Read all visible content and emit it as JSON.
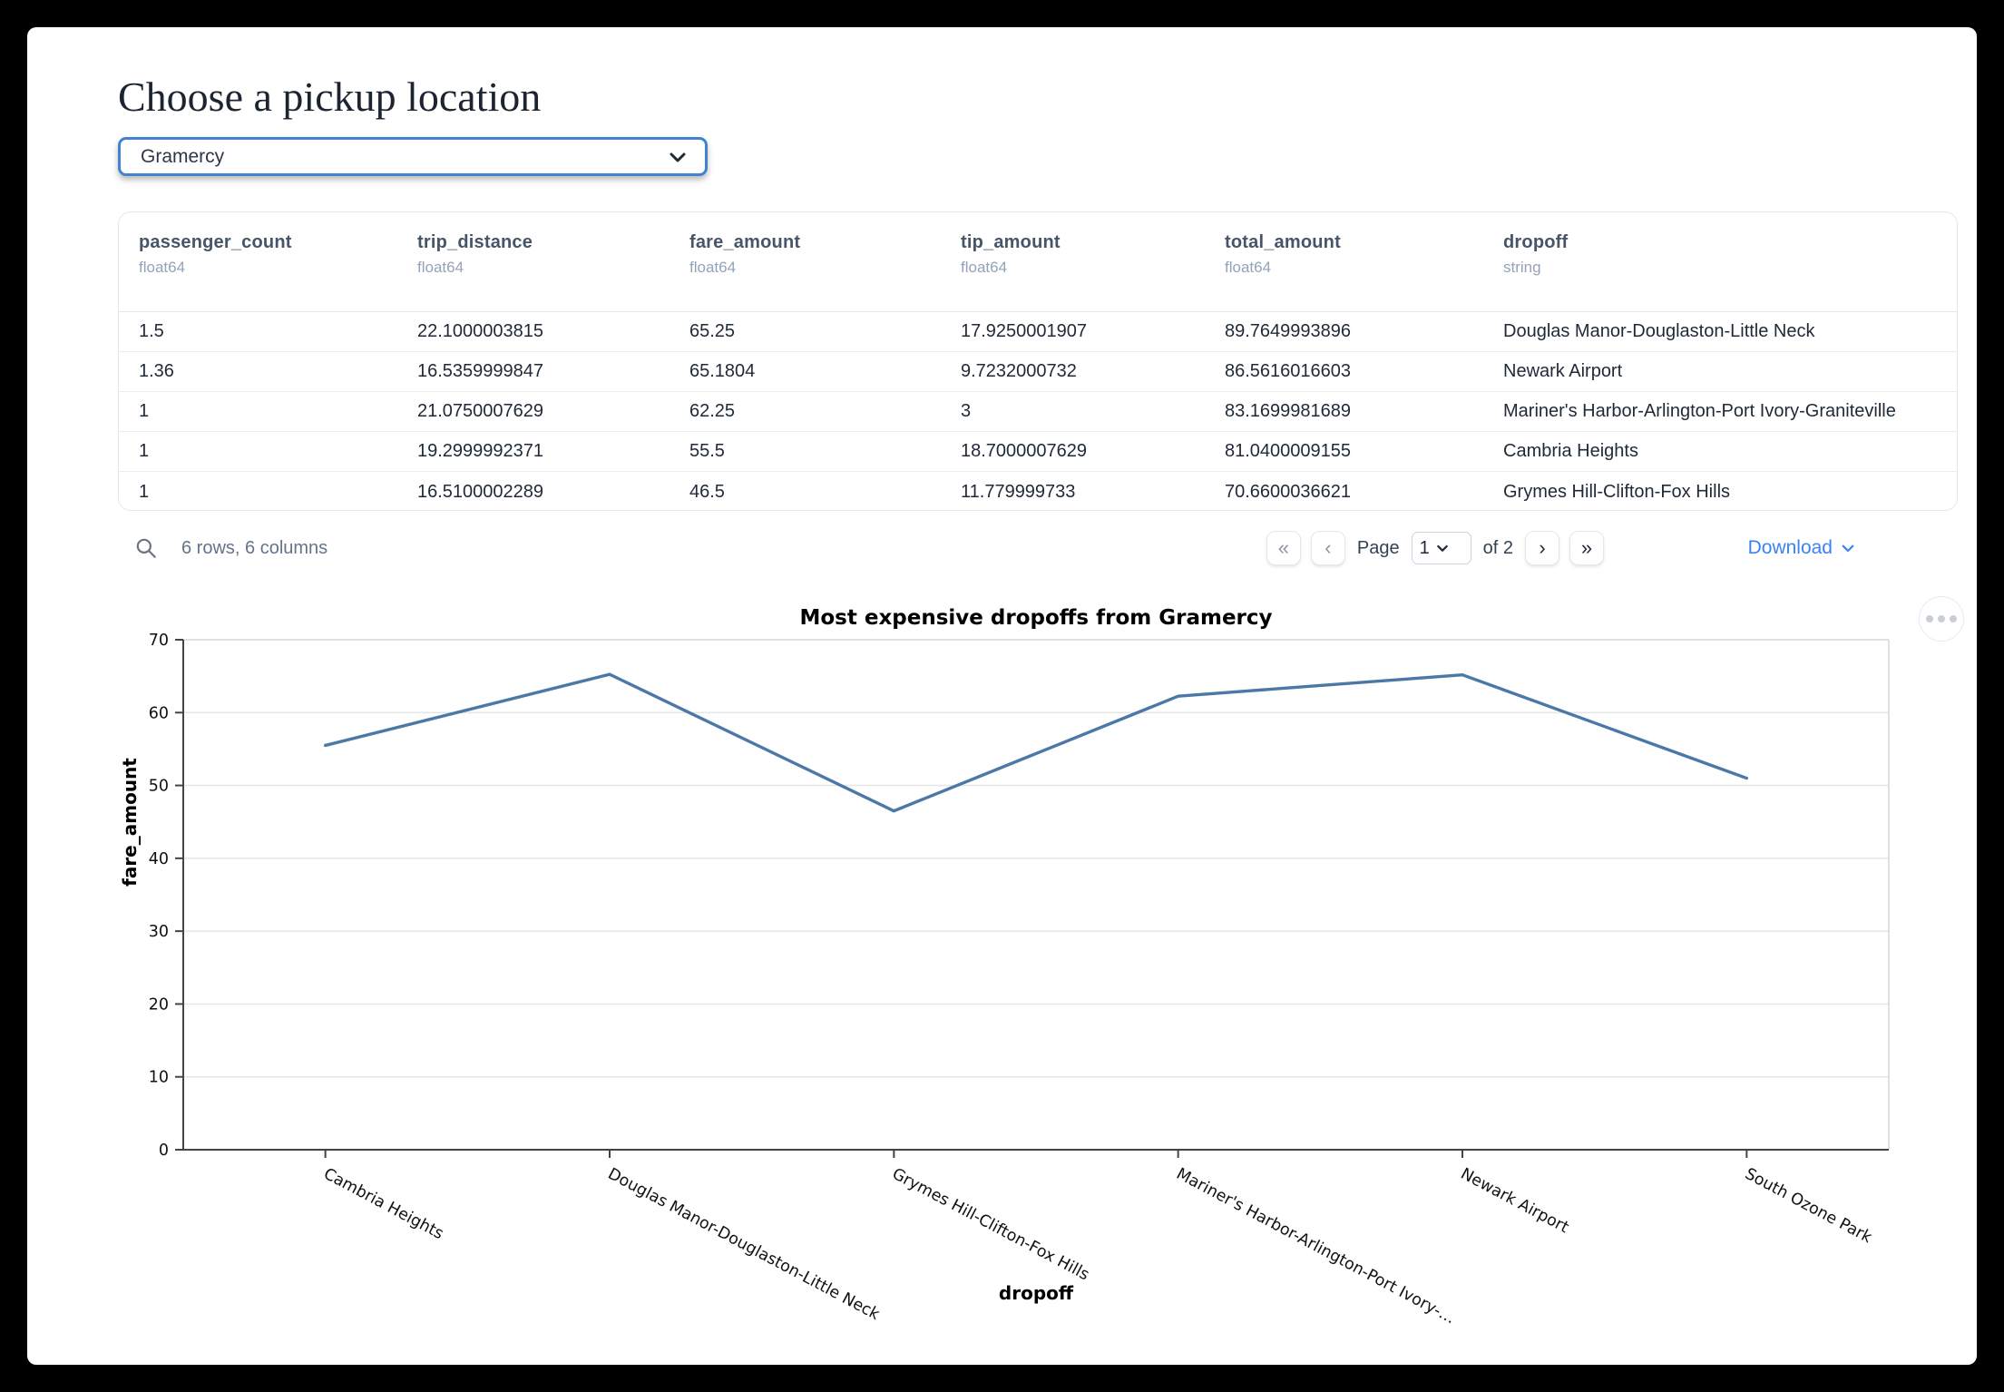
{
  "page": {
    "background": "#000000",
    "card_background": "#ffffff"
  },
  "header": {
    "title": "Choose a pickup location"
  },
  "pickup_select": {
    "value": "Gramercy"
  },
  "table": {
    "columns": [
      {
        "name": "passenger_count",
        "dtype": "float64"
      },
      {
        "name": "trip_distance",
        "dtype": "float64"
      },
      {
        "name": "fare_amount",
        "dtype": "float64"
      },
      {
        "name": "tip_amount",
        "dtype": "float64"
      },
      {
        "name": "total_amount",
        "dtype": "float64"
      },
      {
        "name": "dropoff",
        "dtype": "string"
      }
    ],
    "rows": [
      [
        "1.5",
        "22.1000003815",
        "65.25",
        "17.9250001907",
        "89.7649993896",
        "Douglas Manor-Douglaston-Little Neck"
      ],
      [
        "1.36",
        "16.5359999847",
        "65.1804",
        "9.7232000732",
        "86.5616016603",
        "Newark Airport"
      ],
      [
        "1",
        "21.0750007629",
        "62.25",
        "3",
        "83.1699981689",
        "Mariner's Harbor-Arlington-Port Ivory-Graniteville"
      ],
      [
        "1",
        "19.2999992371",
        "55.5",
        "18.7000007629",
        "81.0400009155",
        "Cambria Heights"
      ],
      [
        "1",
        "16.5100002289",
        "46.5",
        "11.779999733",
        "70.6600036621",
        "Grymes Hill-Clifton-Fox Hills"
      ]
    ],
    "summary": "6 rows, 6 columns",
    "pagination": {
      "page_label": "Page",
      "page_value": "1",
      "total_label": "of 2",
      "first_button": "«",
      "prev_button": "‹",
      "next_button": "›",
      "last_button": "»"
    },
    "download_label": "Download"
  },
  "chart_data": {
    "type": "line",
    "title": "Most expensive dropoffs from Gramercy",
    "xlabel": "dropoff",
    "ylabel": "fare_amount",
    "categories": [
      "Cambria Heights",
      "Douglas Manor-Douglaston-Little Neck",
      "Grymes Hill-Clifton-Fox Hills",
      "Mariner's Harbor-Arlington-Port Ivory-…",
      "Newark Airport",
      "South Ozone Park"
    ],
    "values": [
      55.5,
      65.25,
      46.5,
      62.25,
      65.1804,
      51
    ],
    "ylim": [
      0,
      70
    ],
    "yticks": [
      0,
      10,
      20,
      30,
      40,
      50,
      60,
      70
    ],
    "line_color": "#4C78A8",
    "grid": true,
    "legend": "none"
  }
}
